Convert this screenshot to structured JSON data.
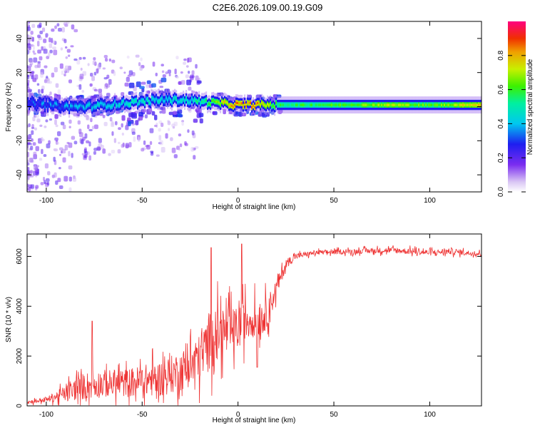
{
  "title": "C2E6.2026.109.00.19.G09",
  "chart_data": [
    {
      "type": "heatmap",
      "name": "spectrogram",
      "xlabel": "Height of straight line (km)",
      "ylabel": "Frequency (Hz)",
      "xlim": [
        -110,
        127
      ],
      "ylim": [
        -50,
        50
      ],
      "xticks": [
        -100,
        -50,
        0,
        50,
        100
      ],
      "yticks": [
        -40,
        -20,
        0,
        20,
        40
      ],
      "colorbar": {
        "label": "Normalized spectral amplitude",
        "range": [
          0,
          1
        ],
        "ticks": [
          "0.0",
          "0.2",
          "0.4",
          "0.6",
          "0.8"
        ]
      },
      "ridge": {
        "description_values": "dominant frequency along height",
        "x": [
          -108,
          -100,
          -90,
          -80,
          -70,
          -60,
          -50,
          -40,
          -30,
          -20,
          -10,
          0,
          10,
          20,
          50,
          80,
          100,
          127
        ],
        "y": [
          2,
          1,
          0,
          0,
          1,
          2,
          3,
          4,
          4,
          3,
          2,
          1,
          1,
          1,
          1,
          1,
          1,
          1
        ],
        "amplitude": [
          0.3,
          0.35,
          0.35,
          0.4,
          0.4,
          0.45,
          0.45,
          0.45,
          0.45,
          0.5,
          0.7,
          0.85,
          0.85,
          0.55,
          0.6,
          0.7,
          0.6,
          0.8
        ]
      }
    },
    {
      "type": "line",
      "name": "snr",
      "xlabel": "Height of straight line (km)",
      "ylabel": "SNR (10 * v/v)",
      "xlim": [
        -110,
        127
      ],
      "ylim": [
        0,
        6900
      ],
      "xticks": [
        -100,
        -50,
        0,
        50,
        100
      ],
      "yticks": [
        0,
        2000,
        4000,
        6000
      ],
      "color": "#ee3333",
      "envelope": {
        "x": [
          -110,
          -100,
          -90,
          -80,
          -70,
          -60,
          -50,
          -40,
          -30,
          -20,
          -15,
          -10,
          -5,
          0,
          5,
          10,
          15,
          20,
          25,
          30,
          40,
          60,
          80,
          100,
          110,
          127
        ],
        "mean": [
          150,
          250,
          500,
          800,
          900,
          900,
          1000,
          1100,
          1400,
          1900,
          2600,
          3000,
          2900,
          3100,
          3500,
          3500,
          3700,
          4700,
          5700,
          6000,
          6150,
          6200,
          6250,
          6150,
          6200,
          6100
        ],
        "spread": [
          100,
          120,
          400,
          700,
          700,
          700,
          800,
          900,
          1000,
          1200,
          1500,
          1300,
          1200,
          1100,
          1000,
          900,
          800,
          500,
          250,
          150,
          120,
          120,
          150,
          150,
          150,
          120
        ]
      },
      "peaks": [
        {
          "x": -76,
          "y": 3400
        },
        {
          "x": -14,
          "y": 6350
        },
        {
          "x": 2,
          "y": 6500
        },
        {
          "x": 10,
          "y": 1550
        }
      ]
    }
  ]
}
